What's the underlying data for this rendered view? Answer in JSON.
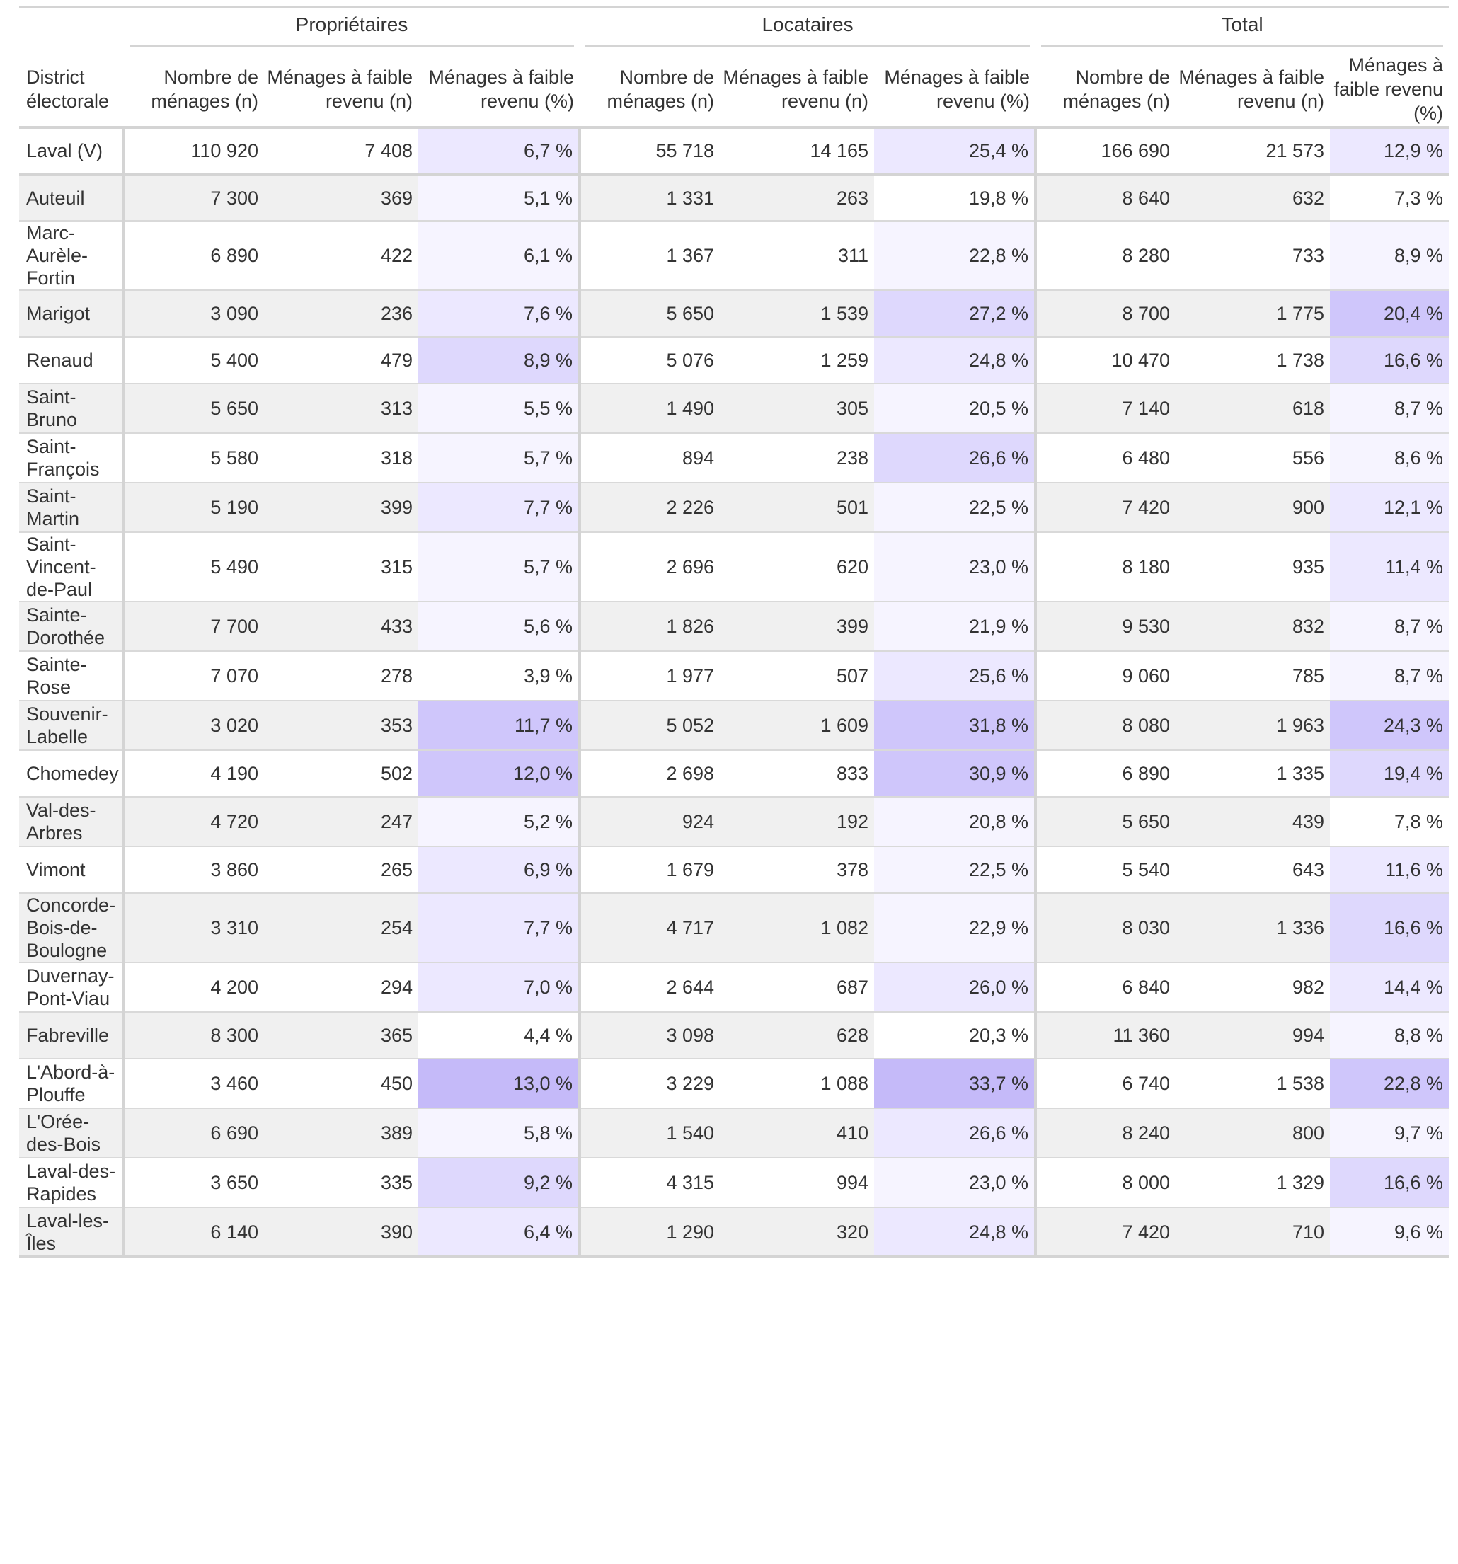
{
  "header": {
    "groups": [
      "Propriétaires",
      "Locataires",
      "Total"
    ],
    "district_label": "District électorale",
    "col_count": "Nombre de ménages (n)",
    "col_low_n": "Ménages à faible revenu (n)",
    "col_low_pct": "Ménages à faible revenu (%)"
  },
  "colors": {
    "heat_scale": [
      "#ffffff",
      "#f6f4ff",
      "#ece8ff",
      "#ded8fd",
      "#cfc6fb",
      "#c5baf9"
    ],
    "stripe": "#f0f0f0",
    "border": "#d4d4d4"
  },
  "rows": [
    {
      "district": "Laval (V)",
      "o_n": "110 920",
      "o_low": "7 408",
      "o_pct": "6,7 %",
      "o_lvl": 2,
      "r_n": "55 718",
      "r_low": "14 165",
      "r_pct": "25,4 %",
      "r_lvl": 2,
      "t_n": "166 690",
      "t_low": "21 573",
      "t_pct": "12,9 %",
      "t_lvl": 2
    },
    {
      "district": "Auteuil",
      "o_n": "7 300",
      "o_low": "369",
      "o_pct": "5,1 %",
      "o_lvl": 1,
      "r_n": "1 331",
      "r_low": "263",
      "r_pct": "19,8 %",
      "r_lvl": 0,
      "t_n": "8 640",
      "t_low": "632",
      "t_pct": "7,3 %",
      "t_lvl": 0
    },
    {
      "district": "Marc-Aurèle-Fortin",
      "o_n": "6 890",
      "o_low": "422",
      "o_pct": "6,1 %",
      "o_lvl": 1,
      "r_n": "1 367",
      "r_low": "311",
      "r_pct": "22,8 %",
      "r_lvl": 1,
      "t_n": "8 280",
      "t_low": "733",
      "t_pct": "8,9 %",
      "t_lvl": 1
    },
    {
      "district": "Marigot",
      "o_n": "3 090",
      "o_low": "236",
      "o_pct": "7,6 %",
      "o_lvl": 2,
      "r_n": "5 650",
      "r_low": "1 539",
      "r_pct": "27,2 %",
      "r_lvl": 3,
      "t_n": "8 700",
      "t_low": "1 775",
      "t_pct": "20,4 %",
      "t_lvl": 4
    },
    {
      "district": "Renaud",
      "o_n": "5 400",
      "o_low": "479",
      "o_pct": "8,9 %",
      "o_lvl": 3,
      "r_n": "5 076",
      "r_low": "1 259",
      "r_pct": "24,8 %",
      "r_lvl": 2,
      "t_n": "10 470",
      "t_low": "1 738",
      "t_pct": "16,6 %",
      "t_lvl": 3
    },
    {
      "district": "Saint-Bruno",
      "o_n": "5 650",
      "o_low": "313",
      "o_pct": "5,5 %",
      "o_lvl": 1,
      "r_n": "1 490",
      "r_low": "305",
      "r_pct": "20,5 %",
      "r_lvl": 1,
      "t_n": "7 140",
      "t_low": "618",
      "t_pct": "8,7 %",
      "t_lvl": 1
    },
    {
      "district": "Saint-François",
      "o_n": "5 580",
      "o_low": "318",
      "o_pct": "5,7 %",
      "o_lvl": 1,
      "r_n": "894",
      "r_low": "238",
      "r_pct": "26,6 %",
      "r_lvl": 3,
      "t_n": "6 480",
      "t_low": "556",
      "t_pct": "8,6 %",
      "t_lvl": 1
    },
    {
      "district": "Saint-Martin",
      "o_n": "5 190",
      "o_low": "399",
      "o_pct": "7,7 %",
      "o_lvl": 2,
      "r_n": "2 226",
      "r_low": "501",
      "r_pct": "22,5 %",
      "r_lvl": 1,
      "t_n": "7 420",
      "t_low": "900",
      "t_pct": "12,1 %",
      "t_lvl": 2
    },
    {
      "district": "Saint-Vincent-de-Paul",
      "o_n": "5 490",
      "o_low": "315",
      "o_pct": "5,7 %",
      "o_lvl": 1,
      "r_n": "2 696",
      "r_low": "620",
      "r_pct": "23,0 %",
      "r_lvl": 1,
      "t_n": "8 180",
      "t_low": "935",
      "t_pct": "11,4 %",
      "t_lvl": 2
    },
    {
      "district": "Sainte-Dorothée",
      "o_n": "7 700",
      "o_low": "433",
      "o_pct": "5,6 %",
      "o_lvl": 1,
      "r_n": "1 826",
      "r_low": "399",
      "r_pct": "21,9 %",
      "r_lvl": 1,
      "t_n": "9 530",
      "t_low": "832",
      "t_pct": "8,7 %",
      "t_lvl": 1
    },
    {
      "district": "Sainte-Rose",
      "o_n": "7 070",
      "o_low": "278",
      "o_pct": "3,9 %",
      "o_lvl": 0,
      "r_n": "1 977",
      "r_low": "507",
      "r_pct": "25,6 %",
      "r_lvl": 2,
      "t_n": "9 060",
      "t_low": "785",
      "t_pct": "8,7 %",
      "t_lvl": 1
    },
    {
      "district": "Souvenir-Labelle",
      "o_n": "3 020",
      "o_low": "353",
      "o_pct": "11,7 %",
      "o_lvl": 4,
      "r_n": "5 052",
      "r_low": "1 609",
      "r_pct": "31,8 %",
      "r_lvl": 4,
      "t_n": "8 080",
      "t_low": "1 963",
      "t_pct": "24,3 %",
      "t_lvl": 4
    },
    {
      "district": "Chomedey",
      "o_n": "4 190",
      "o_low": "502",
      "o_pct": "12,0 %",
      "o_lvl": 4,
      "r_n": "2 698",
      "r_low": "833",
      "r_pct": "30,9 %",
      "r_lvl": 4,
      "t_n": "6 890",
      "t_low": "1 335",
      "t_pct": "19,4 %",
      "t_lvl": 3
    },
    {
      "district": "Val-des-Arbres",
      "o_n": "4 720",
      "o_low": "247",
      "o_pct": "5,2 %",
      "o_lvl": 1,
      "r_n": "924",
      "r_low": "192",
      "r_pct": "20,8 %",
      "r_lvl": 1,
      "t_n": "5 650",
      "t_low": "439",
      "t_pct": "7,8 %",
      "t_lvl": 0
    },
    {
      "district": "Vimont",
      "o_n": "3 860",
      "o_low": "265",
      "o_pct": "6,9 %",
      "o_lvl": 2,
      "r_n": "1 679",
      "r_low": "378",
      "r_pct": "22,5 %",
      "r_lvl": 1,
      "t_n": "5 540",
      "t_low": "643",
      "t_pct": "11,6 %",
      "t_lvl": 2
    },
    {
      "district": "Concorde-Bois-de-Boulogne",
      "o_n": "3 310",
      "o_low": "254",
      "o_pct": "7,7 %",
      "o_lvl": 2,
      "r_n": "4 717",
      "r_low": "1 082",
      "r_pct": "22,9 %",
      "r_lvl": 1,
      "t_n": "8 030",
      "t_low": "1 336",
      "t_pct": "16,6 %",
      "t_lvl": 3
    },
    {
      "district": "Duvernay-Pont-Viau",
      "o_n": "4 200",
      "o_low": "294",
      "o_pct": "7,0 %",
      "o_lvl": 2,
      "r_n": "2 644",
      "r_low": "687",
      "r_pct": "26,0 %",
      "r_lvl": 2,
      "t_n": "6 840",
      "t_low": "982",
      "t_pct": "14,4 %",
      "t_lvl": 2
    },
    {
      "district": "Fabreville",
      "o_n": "8 300",
      "o_low": "365",
      "o_pct": "4,4 %",
      "o_lvl": 0,
      "r_n": "3 098",
      "r_low": "628",
      "r_pct": "20,3 %",
      "r_lvl": 0,
      "t_n": "11 360",
      "t_low": "994",
      "t_pct": "8,8 %",
      "t_lvl": 1
    },
    {
      "district": "L'Abord-à-Plouffe",
      "o_n": "3 460",
      "o_low": "450",
      "o_pct": "13,0 %",
      "o_lvl": 5,
      "r_n": "3 229",
      "r_low": "1 088",
      "r_pct": "33,7 %",
      "r_lvl": 5,
      "t_n": "6 740",
      "t_low": "1 538",
      "t_pct": "22,8 %",
      "t_lvl": 4
    },
    {
      "district": "L'Orée-des-Bois",
      "o_n": "6 690",
      "o_low": "389",
      "o_pct": "5,8 %",
      "o_lvl": 1,
      "r_n": "1 540",
      "r_low": "410",
      "r_pct": "26,6 %",
      "r_lvl": 2,
      "t_n": "8 240",
      "t_low": "800",
      "t_pct": "9,7 %",
      "t_lvl": 1
    },
    {
      "district": "Laval-des-Rapides",
      "o_n": "3 650",
      "o_low": "335",
      "o_pct": "9,2 %",
      "o_lvl": 3,
      "r_n": "4 315",
      "r_low": "994",
      "r_pct": "23,0 %",
      "r_lvl": 1,
      "t_n": "8 000",
      "t_low": "1 329",
      "t_pct": "16,6 %",
      "t_lvl": 3
    },
    {
      "district": "Laval-les-Îles",
      "o_n": "6 140",
      "o_low": "390",
      "o_pct": "6,4 %",
      "o_lvl": 2,
      "r_n": "1 290",
      "r_low": "320",
      "r_pct": "24,8 %",
      "r_lvl": 2,
      "t_n": "7 420",
      "t_low": "710",
      "t_pct": "9,6 %",
      "t_lvl": 1
    }
  ]
}
